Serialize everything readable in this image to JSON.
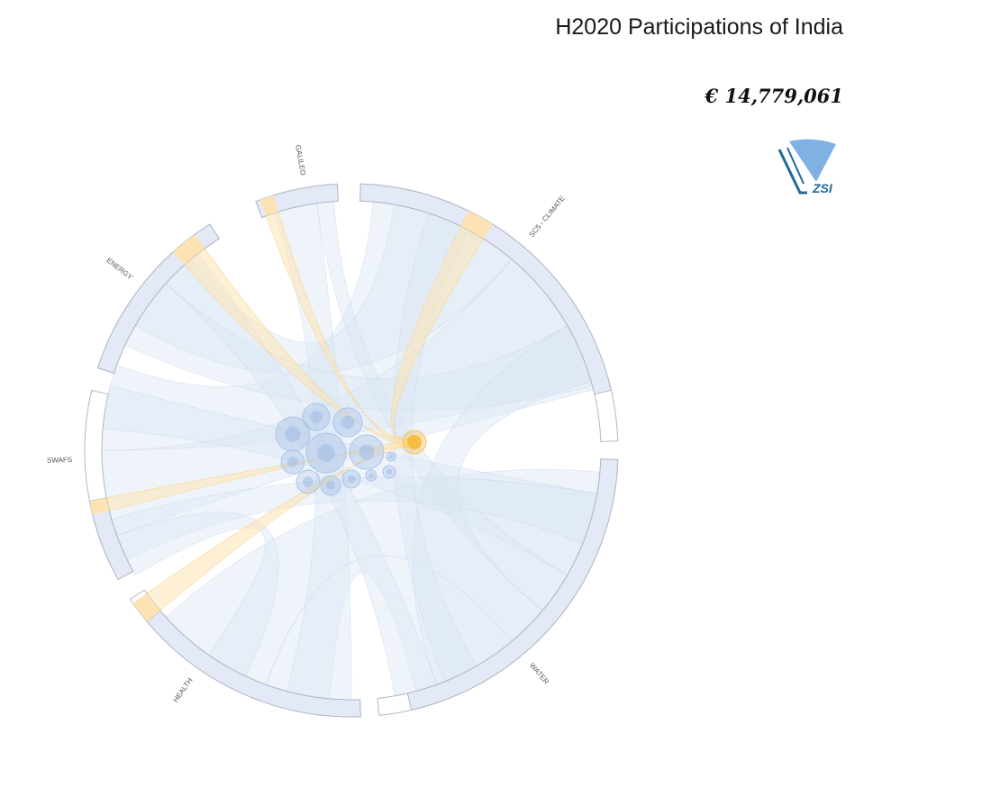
{
  "header": {
    "title": "H2020 Participations of India",
    "funding": "€ 14,779,061"
  },
  "logo": {
    "text": "ZSI",
    "icon": "zsi-logo-icon"
  },
  "diagram": {
    "type": "chord-bubble",
    "segments": [
      {
        "label": "GALILEO",
        "highlight": true,
        "empty": false
      },
      {
        "label": "SC5 - CLIMATE",
        "highlight": true,
        "empty": false
      },
      {
        "label": "WATER",
        "highlight": false,
        "empty": false
      },
      {
        "label": "HEALTH",
        "highlight": true,
        "empty": false
      },
      {
        "label": "SWAFS",
        "highlight": true,
        "empty": false
      },
      {
        "label": "ENERGY",
        "highlight": true,
        "empty": false
      }
    ],
    "colors": {
      "segment_fill": "#e3e9f6",
      "segment_stroke": "#b2b8c2",
      "ribbon": "#dce6f4",
      "highlight": "#fde3b3",
      "node_blue": "#9bb8e2",
      "node_orange": "#f7b733"
    }
  }
}
